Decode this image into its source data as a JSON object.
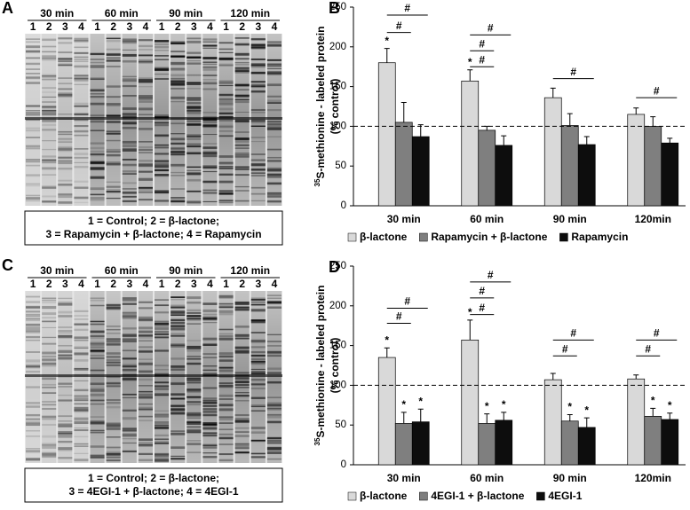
{
  "gels": [
    {
      "letter": "A",
      "time_labels": [
        "30 min",
        "60 min",
        "90 min",
        "120 min"
      ],
      "lanes": [
        "1",
        "2",
        "3",
        "4"
      ],
      "legend": [
        "1 = Control; 2 = β-lactone;",
        "3 = Rapamycin + β-lactone; 4 = Rapamycin"
      ]
    },
    {
      "letter": "C",
      "time_labels": [
        "30 min",
        "60 min",
        "90 min",
        "120 min"
      ],
      "lanes": [
        "1",
        "2",
        "3",
        "4"
      ],
      "legend": [
        "1 = Control; 2 = β-lactone;",
        "3 = 4EGI-1 + β-lactone; 4 = 4EGI-1"
      ]
    }
  ],
  "chart_data": [
    {
      "type": "bar",
      "letter": "B",
      "ylabel_sup": "35",
      "ylabel": "S-methionine - labeled protein",
      "ylabel2": "(% control)",
      "categories": [
        "30 min",
        "60 min",
        "90 min",
        "120min"
      ],
      "series": [
        {
          "name": "β-lactone",
          "color": "#d9d9d9",
          "values": [
            180,
            157,
            136,
            115
          ],
          "errors": [
            18,
            14,
            12,
            8
          ],
          "annotations": [
            "*",
            "*",
            null,
            null
          ]
        },
        {
          "name": "Rapamycin + β-lactone",
          "color": "#7f7f7f",
          "values": [
            105,
            95,
            101,
            100
          ],
          "errors": [
            25,
            5,
            15,
            12
          ],
          "annotations": [
            null,
            null,
            null,
            null
          ]
        },
        {
          "name": "Rapamycin",
          "color": "#0d0d0d",
          "values": [
            87,
            76,
            77,
            79
          ],
          "errors": [
            15,
            12,
            10,
            6
          ],
          "annotations": [
            null,
            null,
            null,
            null
          ]
        }
      ],
      "reference_line": 100,
      "brackets": [
        {
          "text": "#",
          "category": 0,
          "pair": [
            0,
            2
          ],
          "y": 240
        },
        {
          "text": "#",
          "category": 0,
          "pair": [
            0,
            1
          ],
          "y": 218
        },
        {
          "text": "#",
          "category": 1,
          "pair": [
            0,
            2
          ],
          "y": 215
        },
        {
          "text": "#",
          "category": 1,
          "pair": [
            0,
            1
          ],
          "y": 195
        },
        {
          "text": "#",
          "category": 1,
          "pair": [
            0,
            1
          ],
          "y": 175
        },
        {
          "text": "#",
          "category": 2,
          "pair": [
            0,
            2
          ],
          "y": 160
        },
        {
          "text": "#",
          "category": 3,
          "pair": [
            0,
            2
          ],
          "y": 136
        }
      ],
      "ylim": [
        0,
        250
      ],
      "yticks": [
        0,
        50,
        100,
        150,
        200,
        250
      ]
    },
    {
      "type": "bar",
      "letter": "D",
      "ylabel_sup": "35",
      "ylabel": "S-methionine - labeled protein",
      "ylabel2": "(% control)",
      "categories": [
        "30 min",
        "60 min",
        "90 min",
        "120min"
      ],
      "series": [
        {
          "name": "β-lactone",
          "color": "#d9d9d9",
          "values": [
            135,
            157,
            107,
            108
          ],
          "errors": [
            12,
            25,
            8,
            5
          ],
          "annotations": [
            "*",
            "*",
            null,
            null
          ]
        },
        {
          "name": "4EGI-1 + β-lactone",
          "color": "#7f7f7f",
          "values": [
            52,
            52,
            55,
            61
          ],
          "errors": [
            14,
            12,
            8,
            10
          ],
          "annotations": [
            "*",
            "*",
            "*",
            "*"
          ]
        },
        {
          "name": "4EGI-1",
          "color": "#0d0d0d",
          "values": [
            54,
            56,
            47,
            57
          ],
          "errors": [
            16,
            10,
            12,
            8
          ],
          "annotations": [
            "*",
            "*",
            "*",
            "*"
          ]
        }
      ],
      "reference_line": 100,
      "brackets": [
        {
          "text": "#",
          "category": 0,
          "pair": [
            0,
            2
          ],
          "y": 197
        },
        {
          "text": "#",
          "category": 0,
          "pair": [
            0,
            1
          ],
          "y": 178
        },
        {
          "text": "#",
          "category": 1,
          "pair": [
            0,
            2
          ],
          "y": 230
        },
        {
          "text": "#",
          "category": 1,
          "pair": [
            0,
            1
          ],
          "y": 210
        },
        {
          "text": "#",
          "category": 1,
          "pair": [
            0,
            1
          ],
          "y": 189
        },
        {
          "text": "#",
          "category": 2,
          "pair": [
            0,
            2
          ],
          "y": 157
        },
        {
          "text": "#",
          "category": 2,
          "pair": [
            0,
            1
          ],
          "y": 137
        },
        {
          "text": "#",
          "category": 3,
          "pair": [
            0,
            2
          ],
          "y": 157
        },
        {
          "text": "#",
          "category": 3,
          "pair": [
            0,
            1
          ],
          "y": 137
        }
      ],
      "ylim": [
        0,
        250
      ],
      "yticks": [
        0,
        50,
        100,
        150,
        200,
        250
      ]
    }
  ]
}
